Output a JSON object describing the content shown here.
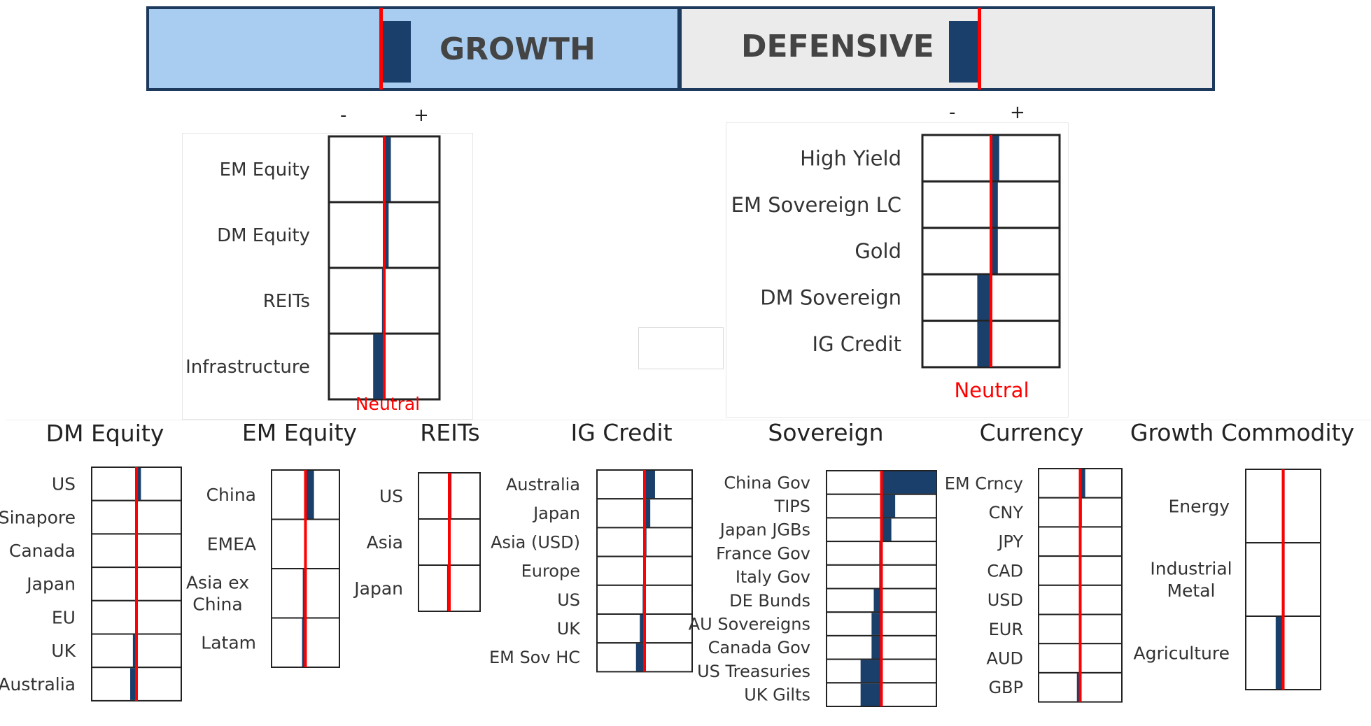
{
  "header": {
    "growth_label": "GROWTH",
    "defensive_label": "DEFENSIVE"
  },
  "colors": {
    "tilt": "#1b3f6b",
    "neutral_line": "#ff0000",
    "grid": "#222222",
    "growth_fill": "#a8cdf0",
    "defensive_fill": "#ebebeb"
  },
  "minus_label": "-",
  "plus_label": "+",
  "neutral_label": "Neutral",
  "chart_data": [
    {
      "type": "bar",
      "id": "top-bar",
      "categories": [
        "GROWTH",
        "DEFENSIVE"
      ],
      "values": [
        0.5,
        -0.5
      ],
      "xlim": [
        -1,
        1
      ]
    },
    {
      "type": "bar",
      "id": "growth",
      "title": "",
      "categories": [
        "EM Equity",
        "DM Equity",
        "REITs",
        "Infrastructure"
      ],
      "values": [
        0.12,
        0.08,
        -0.04,
        -0.2
      ],
      "xlim": [
        -1,
        1
      ]
    },
    {
      "type": "bar",
      "id": "defensive",
      "title": "",
      "categories": [
        "High Yield",
        "EM Sovereign LC",
        "Gold",
        "DM Sovereign",
        "IG Credit"
      ],
      "values": [
        0.12,
        0.1,
        0.1,
        -0.2,
        -0.2
      ],
      "xlim": [
        -1,
        1
      ]
    },
    {
      "type": "bar",
      "id": "dm-equity",
      "title": "DM Equity",
      "categories": [
        "US",
        "Sinapore",
        "Canada",
        "Japan",
        "EU",
        "UK",
        "Australia"
      ],
      "values": [
        0.1,
        0.02,
        0.02,
        0.02,
        -0.02,
        -0.08,
        -0.14
      ],
      "xlim": [
        -1,
        1
      ]
    },
    {
      "type": "bar",
      "id": "em-equity",
      "title": "EM Equity",
      "categories": [
        "China",
        "EMEA",
        "Asia ex\nChina",
        "Latam"
      ],
      "values": [
        0.25,
        0.02,
        -0.08,
        -0.1
      ],
      "xlim": [
        -1,
        1
      ]
    },
    {
      "type": "bar",
      "id": "reits",
      "title": "REITs",
      "categories": [
        "US",
        "Asia",
        "Japan"
      ],
      "values": [
        0.07,
        0.02,
        -0.07
      ],
      "xlim": [
        -1,
        1
      ]
    },
    {
      "type": "bar",
      "id": "ig-credit",
      "title": "IG Credit",
      "categories": [
        "Australia",
        "Japan",
        "Asia (USD)",
        "Europe",
        "US",
        "UK",
        "EM Sov HC"
      ],
      "values": [
        0.22,
        0.12,
        0.04,
        0.02,
        -0.04,
        -0.1,
        -0.18
      ],
      "xlim": [
        -1,
        1
      ]
    },
    {
      "type": "bar",
      "id": "sovereign",
      "title": "Sovereign",
      "categories": [
        "China Gov",
        "TIPS",
        "Japan JGBs",
        "France Gov",
        "Italy Gov",
        "DE Bunds",
        "AU Sovereigns",
        "Canada Gov",
        "US Treasuries",
        "UK Gilts"
      ],
      "values": [
        1.0,
        0.25,
        0.18,
        -0.04,
        -0.04,
        -0.14,
        -0.18,
        -0.18,
        -0.38,
        -0.38
      ],
      "xlim": [
        -1,
        1
      ]
    },
    {
      "type": "bar",
      "id": "currency",
      "title": "Currency",
      "categories": [
        "EM Crncy",
        "CNY",
        "JPY",
        "CAD",
        "USD",
        "EUR",
        "AUD",
        "GBP"
      ],
      "values": [
        0.12,
        0.04,
        0.02,
        0.02,
        0.02,
        -0.02,
        -0.02,
        -0.08
      ],
      "xlim": [
        -1,
        1
      ]
    },
    {
      "type": "bar",
      "id": "growth-commodity",
      "title": "Growth Commodity",
      "categories": [
        "Energy",
        "Industrial\nMetal",
        "Agriculture"
      ],
      "values": [
        0.04,
        0.04,
        -0.2
      ],
      "xlim": [
        -1,
        1
      ]
    }
  ]
}
